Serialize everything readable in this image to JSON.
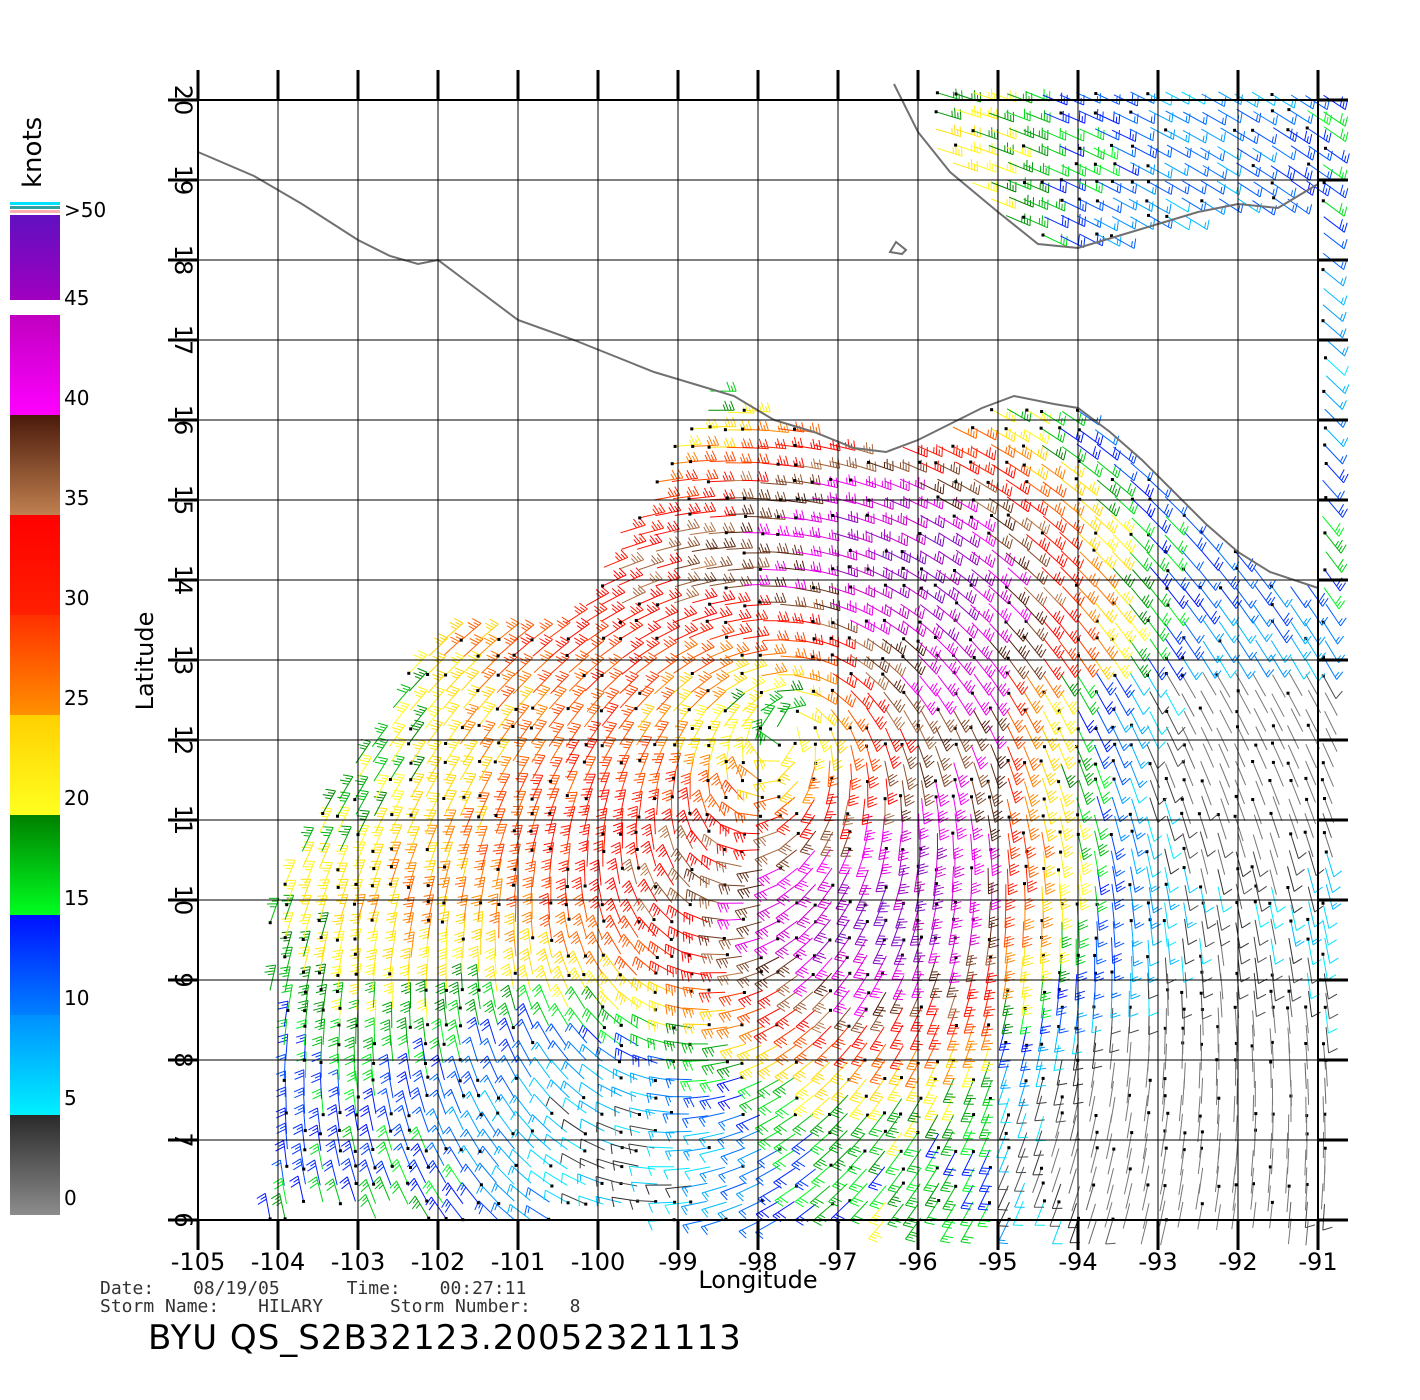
{
  "map": {
    "xlabel": "Longitude",
    "ylabel": "Latitude",
    "lon_ticks": [
      "-105",
      "-104",
      "-103",
      "-102",
      "-101",
      "-100",
      "-99",
      "-98",
      "-97",
      "-96",
      "-95",
      "-94",
      "-93",
      "-92",
      "-91"
    ],
    "lat_ticks": [
      "6",
      "7",
      "8",
      "9",
      "10",
      "11",
      "12",
      "13",
      "14",
      "15",
      "16",
      "17",
      "18",
      "19",
      "20"
    ],
    "lon_range": [
      -105,
      -91
    ],
    "lat_range": [
      6,
      20
    ],
    "coast_color": "#707070",
    "grid": true
  },
  "colorbar": {
    "title": "knots",
    "labels": [
      {
        "text": "0",
        "value": 0
      },
      {
        "text": "5",
        "value": 5
      },
      {
        "text": "10",
        "value": 10
      },
      {
        "text": "15",
        "value": 15
      },
      {
        "text": "20",
        "value": 20
      },
      {
        "text": "25",
        "value": 25
      },
      {
        "text": "30",
        "value": 30
      },
      {
        "text": "35",
        "value": 35
      },
      {
        "text": "40",
        "value": 40
      },
      {
        "text": "45",
        "value": 45
      },
      {
        "text": ">50",
        "value": 50
      }
    ],
    "bands": [
      {
        "from": 0,
        "to": 5,
        "top": "#2a2a2a",
        "bottom": "#8c8c8c"
      },
      {
        "from": 5,
        "to": 10,
        "top": "#0090ff",
        "bottom": "#00f0ff"
      },
      {
        "from": 10,
        "to": 15,
        "top": "#0010ff",
        "bottom": "#0080ff"
      },
      {
        "from": 15,
        "to": 20,
        "top": "#008000",
        "bottom": "#00ff20"
      },
      {
        "from": 20,
        "to": 25,
        "top": "#ffd000",
        "bottom": "#ffff20"
      },
      {
        "from": 25,
        "to": 30,
        "top": "#ff3000",
        "bottom": "#ff9000"
      },
      {
        "from": 30,
        "to": 35,
        "top": "#ff0000",
        "bottom": "#ff2000"
      },
      {
        "from": 35,
        "to": 40,
        "top": "#4a1a0a",
        "bottom": "#c08050"
      },
      {
        "from": 40,
        "to": 45,
        "top": "#c000c0",
        "bottom": "#ff00ff"
      },
      {
        "from": 45,
        "to": 50,
        "top": "#6010c0",
        "bottom": "#a000c0"
      }
    ]
  },
  "footer": {
    "date_label": "Date:",
    "date": "08/19/05",
    "time_label": "Time:",
    "time": "00:27:11",
    "storm_name_label": "Storm Name:",
    "storm_name": "HILARY",
    "storm_number_label": "Storm Number:",
    "storm_number": "8",
    "product": "BYU QS_S2B32123.20052321113"
  }
}
